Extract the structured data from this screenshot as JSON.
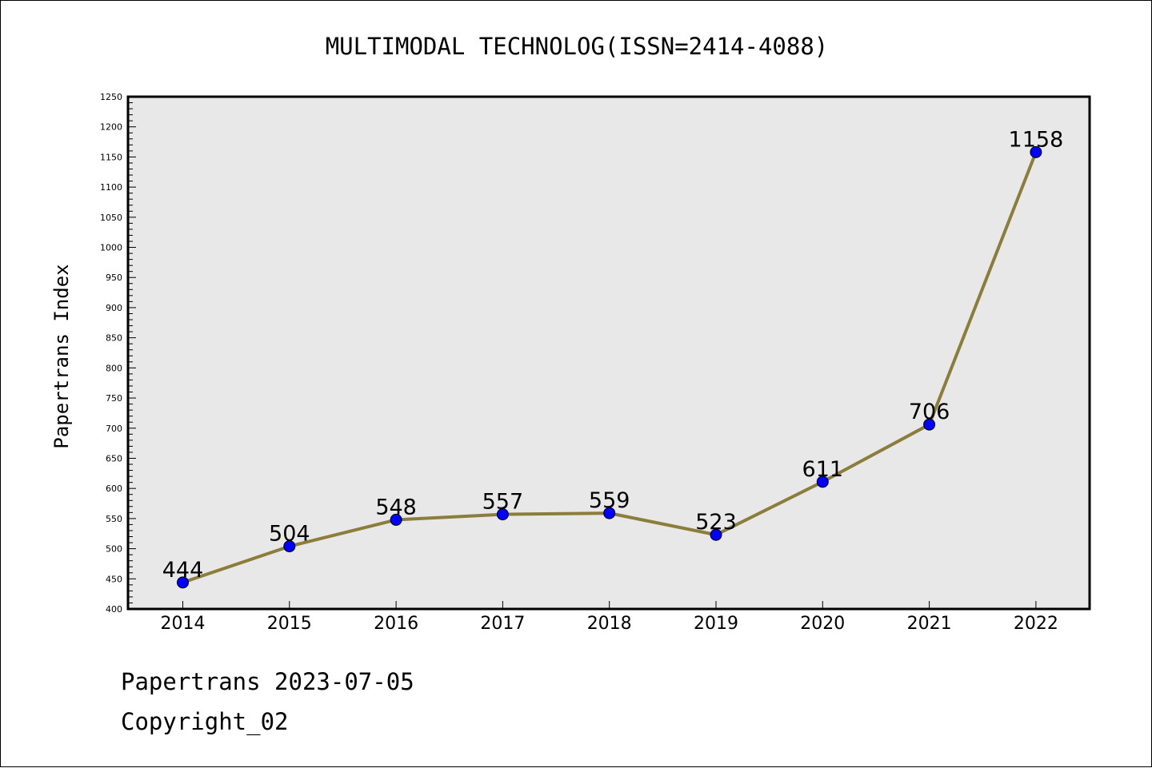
{
  "chart_data": {
    "type": "line",
    "title": "MULTIMODAL TECHNOLOG(ISSN=2414-4088)",
    "xlabel": "",
    "ylabel": "Papertrans Index",
    "categories": [
      "2014",
      "2015",
      "2016",
      "2017",
      "2018",
      "2019",
      "2020",
      "2021",
      "2022"
    ],
    "series": [
      {
        "values": [
          444,
          504,
          548,
          557,
          559,
          523,
          611,
          706,
          1158
        ],
        "line_color": "#8b7d3a",
        "marker_color": "#0000ff"
      }
    ],
    "data_labels": [
      "444",
      "504",
      "548",
      "557",
      "559",
      "523",
      "611",
      "706",
      "1158"
    ],
    "ylim": [
      400,
      1250
    ],
    "yticks": [
      400,
      450,
      500,
      550,
      600,
      650,
      700,
      750,
      800,
      850,
      900,
      950,
      1000,
      1050,
      1100,
      1150,
      1200,
      1250
    ],
    "ytick_labels": [
      "400",
      "450",
      "500",
      "550",
      "600",
      "650",
      "700",
      "750",
      "800",
      "850",
      "900",
      "950",
      "1000",
      "1050",
      "1100",
      "1150",
      "1200",
      "1250"
    ],
    "plot_background": "#e8e8e8",
    "grid": false,
    "legend": "none"
  },
  "footer": {
    "line1": "Papertrans 2023-07-05",
    "line2": "Copyright_02"
  }
}
